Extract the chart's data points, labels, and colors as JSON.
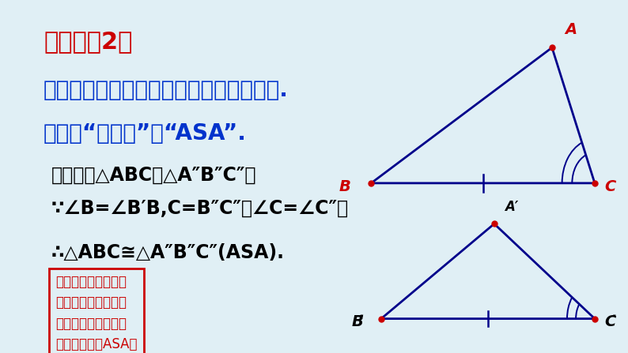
{
  "bg_color": "#e0eff5",
  "title1": "判定方法2：",
  "title1_color": "#cc0000",
  "title1_fontsize": 22,
  "line2": "两角及其夹边分别相等的两个三角形全等.",
  "line3": "简写成“角边角”或“ASA”.",
  "line23_color": "#0033cc",
  "line23_fontsize": 20,
  "line4": "如图，在△ABC与△A″B″C″中",
  "line5": "∵∠B=∠B′B,C=B″C″，∠C=∠C″，",
  "line6": "∴△ABC≅△A″B″C″(ASA).",
  "line456_color": "#000000",
  "line456_fontsize": 17,
  "hint_line1": "提示：登录优教同步",
  "hint_line2": "学习网，搜索动画演",
  "hint_line3": "示：两个三角形全等",
  "hint_line4": "的判定方法（ASA）",
  "hint_color": "#cc0000",
  "hint_border_color": "#cc0000",
  "hint_fontsize": 12,
  "tri_color": "#00008b",
  "vertex_color": "#cc0000"
}
